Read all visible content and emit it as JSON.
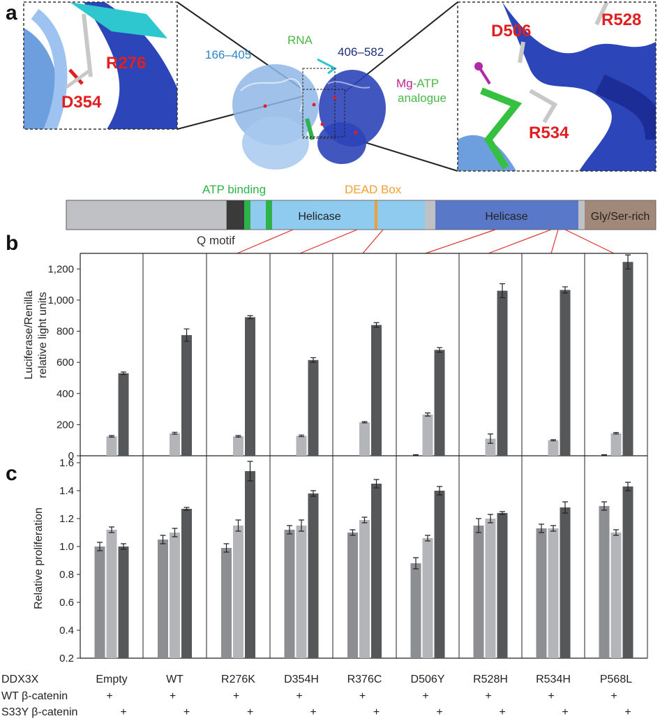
{
  "panels": {
    "a": "a",
    "b": "b",
    "c": "c"
  },
  "structure": {
    "rna_label": "RNA",
    "domain1_label": "166–405",
    "domain2_label": "406–582",
    "mg_label": "Mg",
    "atp_label": "-ATP",
    "analogue_label": "analogue",
    "left_zoom_residues": [
      "R276",
      "D354"
    ],
    "right_zoom_residues": [
      "D506",
      "R528",
      "R534"
    ]
  },
  "domain_bar": {
    "atp_binding_label": "ATP binding",
    "dead_box_label": "DEAD Box",
    "q_motif_label": "Q motif",
    "helicase1_label": "Helicase",
    "helicase2_label": "Helicase",
    "gly_ser_label": "Gly/Ser-rich",
    "colors": {
      "grey": "#bfc1c4",
      "dark": "#3a3a3a",
      "atp": "#2db34a",
      "light_blue": "#8ecbef",
      "dead": "#f0a030",
      "blue": "#5a78c8",
      "brown": "#a18878"
    }
  },
  "conditions": {
    "row1_label": "DDX3X",
    "row2_label": "WT β-catenin",
    "row3_label": "S33Y β-catenin",
    "plus": "+",
    "groups": [
      "Empty",
      "WT",
      "R276K",
      "D354H",
      "R376C",
      "D506Y",
      "R528H",
      "R534H",
      "P568L"
    ]
  },
  "chart_data": [
    {
      "type": "bar",
      "panel": "b",
      "ylabel_line1": "Luciferase/Renilla",
      "ylabel_line2": "relative light units",
      "categories": [
        "Empty",
        "WT",
        "R276K",
        "D354H",
        "R376C",
        "D506Y",
        "R528H",
        "R534H",
        "P568L"
      ],
      "ylim": [
        0,
        1300
      ],
      "yticks": [
        0,
        200,
        400,
        600,
        800,
        1000,
        1200
      ],
      "ytick_labels": [
        "0",
        "200",
        "400",
        "600",
        "800",
        "1,000",
        "1,200"
      ],
      "series": [
        {
          "values": [
            0,
            0,
            0,
            0,
            0,
            5,
            0,
            0,
            5
          ],
          "errors": [
            0,
            0,
            0,
            0,
            0,
            2,
            0,
            0,
            2
          ],
          "color": "#8c8e91"
        },
        {
          "values": [
            125,
            145,
            125,
            128,
            215,
            265,
            110,
            100,
            145
          ],
          "errors": [
            5,
            6,
            5,
            5,
            4,
            10,
            30,
            4,
            5
          ],
          "color": "#b3b5b8"
        },
        {
          "values": [
            530,
            775,
            890,
            615,
            840,
            680,
            1060,
            1065,
            1245
          ],
          "errors": [
            8,
            40,
            10,
            15,
            15,
            15,
            45,
            20,
            45
          ],
          "color": "#555759"
        }
      ]
    },
    {
      "type": "bar",
      "panel": "c",
      "ylabel": "Relative proliferation",
      "categories": [
        "Empty",
        "WT",
        "R276K",
        "D354H",
        "R376C",
        "D506Y",
        "R528H",
        "R534H",
        "P568L"
      ],
      "ylim": [
        0.2,
        1.65
      ],
      "yticks": [
        0.2,
        0.4,
        0.6,
        0.8,
        1.0,
        1.2,
        1.4,
        1.6
      ],
      "ytick_labels": [
        "0.2",
        "0.4",
        "0.6",
        "0.8",
        "1.0",
        "1.2",
        "1.4",
        "1.6"
      ],
      "series": [
        {
          "values": [
            1.0,
            1.05,
            0.99,
            1.12,
            1.1,
            0.88,
            1.15,
            1.13,
            1.29
          ],
          "errors": [
            0.03,
            0.03,
            0.03,
            0.03,
            0.02,
            0.04,
            0.05,
            0.03,
            0.03
          ],
          "color": "#8c8e91"
        },
        {
          "values": [
            1.12,
            1.1,
            1.15,
            1.15,
            1.19,
            1.06,
            1.2,
            1.13,
            1.1
          ],
          "errors": [
            0.02,
            0.03,
            0.04,
            0.04,
            0.02,
            0.02,
            0.03,
            0.02,
            0.02
          ],
          "color": "#b3b5b8"
        },
        {
          "values": [
            1.0,
            1.27,
            1.54,
            1.38,
            1.45,
            1.4,
            1.24,
            1.28,
            1.43
          ],
          "errors": [
            0.02,
            0.01,
            0.07,
            0.02,
            0.03,
            0.03,
            0.01,
            0.04,
            0.03
          ],
          "color": "#555759"
        }
      ]
    }
  ]
}
